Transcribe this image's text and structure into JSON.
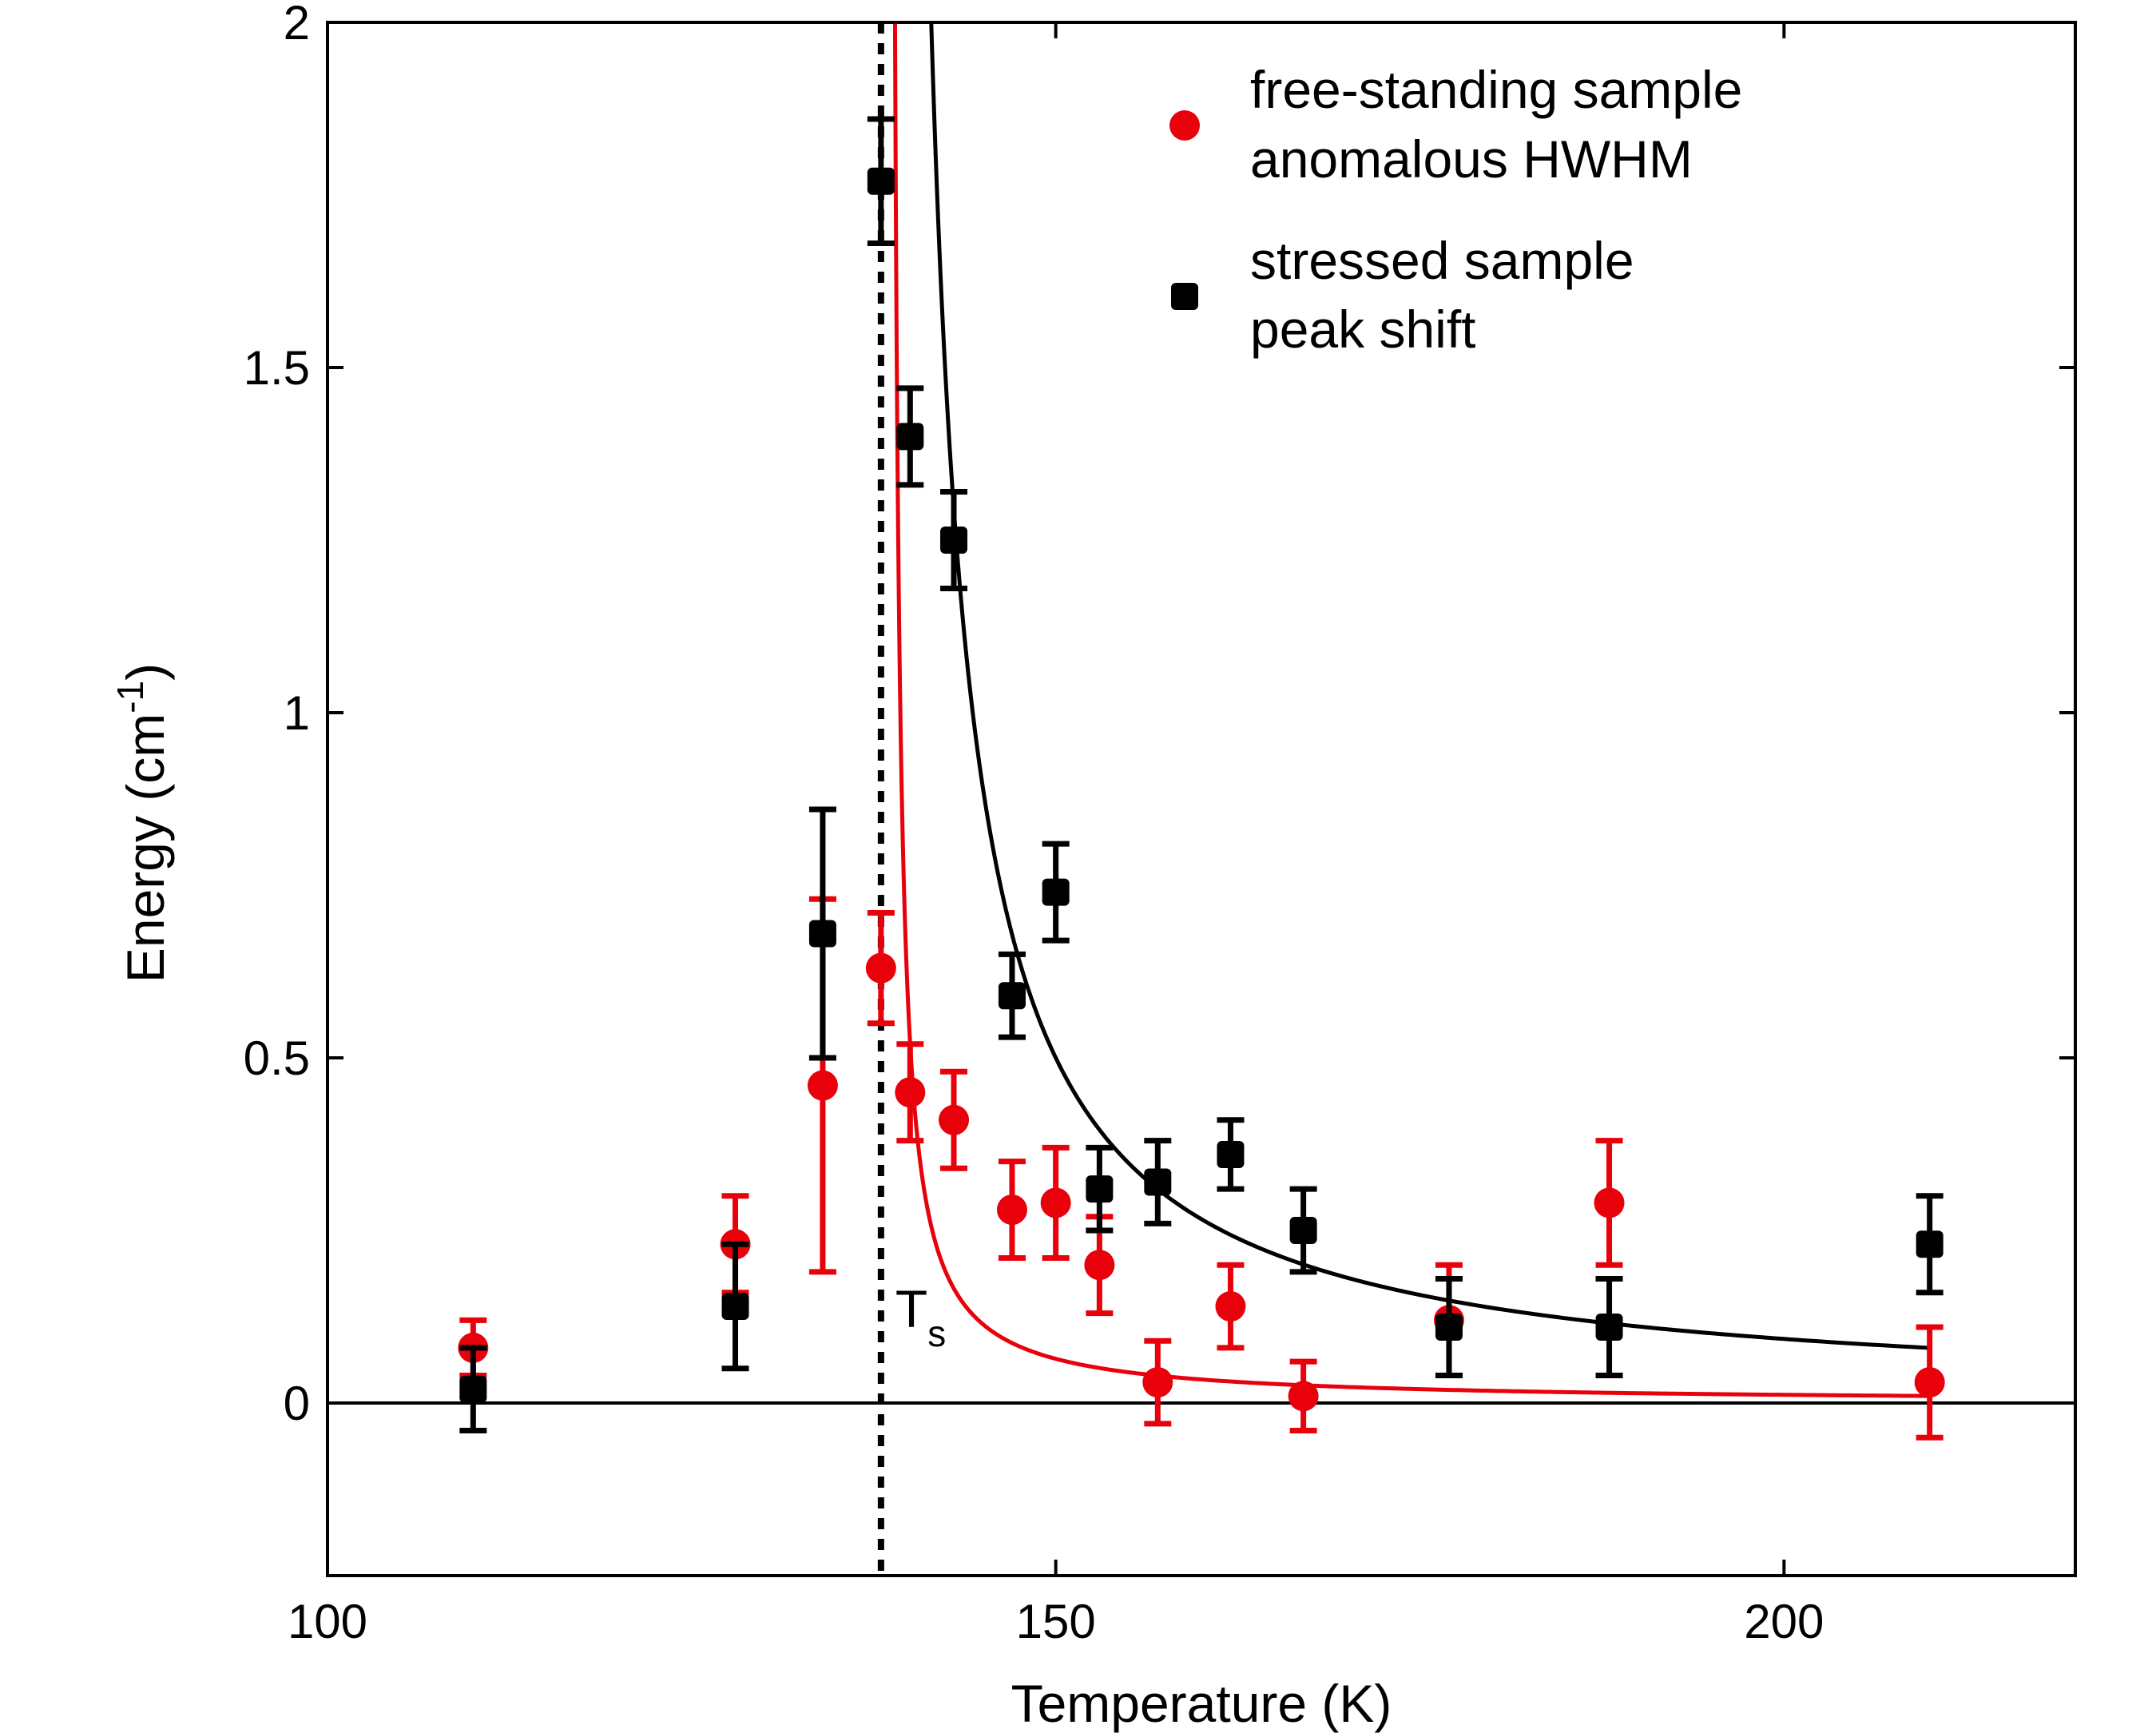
{
  "chart_data": {
    "type": "scatter",
    "title": "",
    "xlabel": "Temperature (K)",
    "ylabel_main": "Energy (cm",
    "ylabel_sup": "-1",
    "ylabel_close": ")",
    "xlim": [
      100,
      220
    ],
    "ylim": [
      -0.25,
      2.0
    ],
    "x_ticks": [
      100,
      150,
      200
    ],
    "x_tick_labels": [
      "100",
      "150",
      "200"
    ],
    "y_ticks": [
      0,
      0.5,
      1,
      1.5,
      2
    ],
    "y_tick_labels": [
      "0",
      "0.5",
      "1",
      "1.5",
      "2"
    ],
    "annotation": {
      "text": "T",
      "subscript": "s",
      "x": 138
    },
    "reference_lines": [
      {
        "type": "horizontal",
        "y": 0,
        "style": "solid"
      },
      {
        "type": "vertical",
        "x": 138,
        "style": "dotted"
      }
    ],
    "series": [
      {
        "name": "free-standing sample anomalous HWHM",
        "legend_line1": "free-standing sample",
        "legend_line2": "anomalous HWHM",
        "color": "#e8000b",
        "marker": "circle",
        "points": [
          {
            "x": 110,
            "y": 0.08,
            "err": 0.04
          },
          {
            "x": 128,
            "y": 0.23,
            "err": 0.07
          },
          {
            "x": 134,
            "y": 0.46,
            "err": 0.27
          },
          {
            "x": 138,
            "y": 0.63,
            "err": 0.08
          },
          {
            "x": 140,
            "y": 0.45,
            "err": 0.07
          },
          {
            "x": 143,
            "y": 0.41,
            "err": 0.07
          },
          {
            "x": 147,
            "y": 0.28,
            "err": 0.07
          },
          {
            "x": 150,
            "y": 0.29,
            "err": 0.08
          },
          {
            "x": 153,
            "y": 0.2,
            "err": 0.07
          },
          {
            "x": 157,
            "y": 0.03,
            "err": 0.06
          },
          {
            "x": 162,
            "y": 0.14,
            "err": 0.06
          },
          {
            "x": 167,
            "y": 0.01,
            "err": 0.05
          },
          {
            "x": 177,
            "y": 0.12,
            "err": 0.08
          },
          {
            "x": 188,
            "y": 0.29,
            "err": 0.09
          },
          {
            "x": 210,
            "y": 0.03,
            "err": 0.08
          }
        ],
        "fit": {
          "A": 0.73,
          "Tc": 138.6,
          "p": 1
        }
      },
      {
        "name": "stressed sample peak shift",
        "legend_line1": "stressed sample",
        "legend_line2": "peak shift",
        "color": "#000000",
        "marker": "square",
        "points": [
          {
            "x": 110,
            "y": 0.02,
            "err": 0.06
          },
          {
            "x": 128,
            "y": 0.14,
            "err": 0.09
          },
          {
            "x": 134,
            "y": 0.68,
            "err": 0.18
          },
          {
            "x": 138,
            "y": 1.77,
            "err": 0.09
          },
          {
            "x": 140,
            "y": 1.4,
            "err": 0.07
          },
          {
            "x": 143,
            "y": 1.25,
            "err": 0.07
          },
          {
            "x": 147,
            "y": 0.59,
            "err": 0.06
          },
          {
            "x": 150,
            "y": 0.74,
            "err": 0.07
          },
          {
            "x": 153,
            "y": 0.31,
            "err": 0.06
          },
          {
            "x": 157,
            "y": 0.32,
            "err": 0.06
          },
          {
            "x": 162,
            "y": 0.36,
            "err": 0.05
          },
          {
            "x": 167,
            "y": 0.25,
            "err": 0.06
          },
          {
            "x": 177,
            "y": 0.11,
            "err": 0.07
          },
          {
            "x": 188,
            "y": 0.11,
            "err": 0.07
          },
          {
            "x": 210,
            "y": 0.23,
            "err": 0.07
          }
        ],
        "fit": {
          "A": 5.7,
          "Tc": 138.6,
          "p": 1
        }
      }
    ]
  }
}
